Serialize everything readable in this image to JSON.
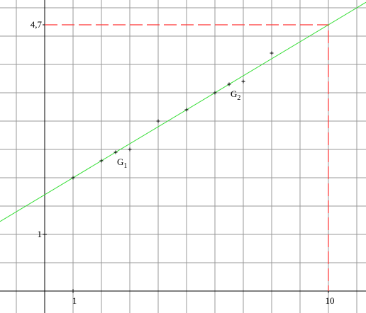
{
  "chart_data": {
    "type": "scatter",
    "x": [
      1,
      2,
      2.5,
      3,
      4,
      5,
      6,
      6.5,
      7,
      8
    ],
    "values": [
      2.0,
      2.3,
      2.45,
      2.5,
      3.0,
      3.2,
      3.5,
      3.65,
      3.7,
      4.2
    ],
    "color": "#000000",
    "xlim": [
      -1.575,
      11.325
    ],
    "ylim": [
      -0.3875,
      5.1375
    ],
    "xticks": [
      1,
      10
    ],
    "yticks": [
      1,
      {
        "value": 4.7,
        "label": "4,7"
      }
    ],
    "grid_x": [
      -1,
      0,
      1,
      2,
      3,
      4,
      5,
      6,
      7,
      8,
      9,
      10,
      11
    ],
    "grid_y": [
      0,
      0.5,
      1,
      1.5,
      2,
      2.5,
      3,
      3.5,
      4,
      4.5,
      5
    ],
    "fit_line": {
      "slope": 0.3,
      "intercept": 1.7,
      "color": "#33dd33"
    },
    "guide": {
      "x": 10,
      "y": 4.7,
      "color": "#ff3333"
    },
    "annotations": [
      {
        "text": "G",
        "sub": "1",
        "x": 2.5,
        "y": 2.45
      },
      {
        "text": "G",
        "sub": "2",
        "x": 6.5,
        "y": 3.65
      }
    ]
  }
}
